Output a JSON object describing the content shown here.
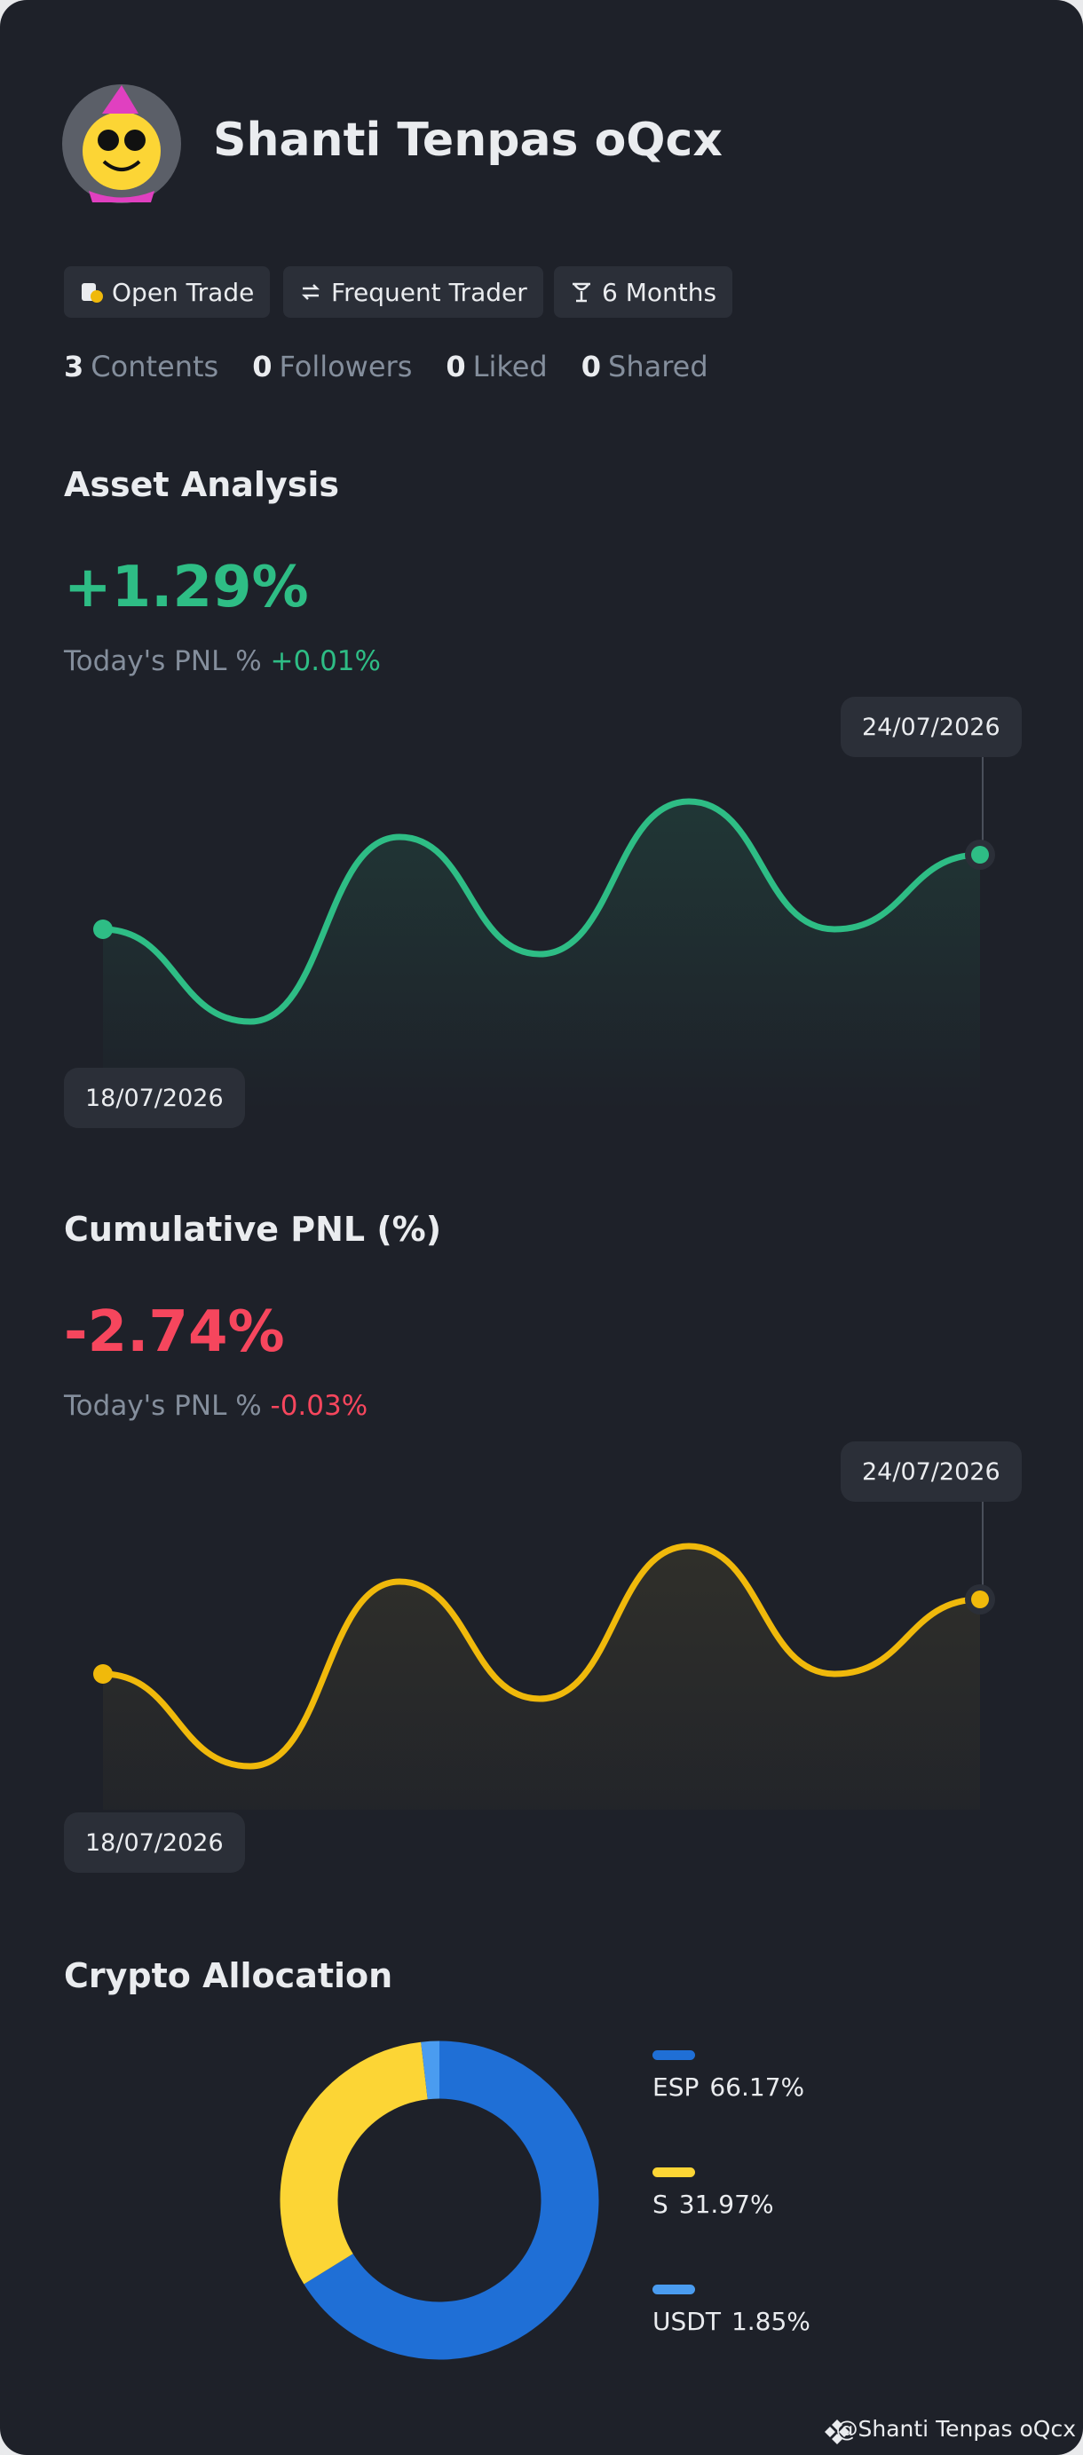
{
  "profile": {
    "name": "Shanti Tenpas oQcx",
    "tags": [
      "Open Trade",
      "Frequent Trader",
      "6 Months"
    ],
    "stats": [
      {
        "count": 3,
        "label": "Contents"
      },
      {
        "count": 0,
        "label": "Followers"
      },
      {
        "count": 0,
        "label": "Liked"
      },
      {
        "count": 0,
        "label": "Shared"
      }
    ]
  },
  "asset_analysis": {
    "title": "Asset Analysis",
    "value": "+1.29%",
    "today_label": "Today's PNL %",
    "today_value": "+0.01%",
    "start_date": "18/07/2026",
    "end_date": "24/07/2026"
  },
  "cumulative_pnl": {
    "title": "Cumulative PNL (%)",
    "value": "-2.74%",
    "today_label": "Today's PNL %",
    "today_value": "-0.03%",
    "start_date": "18/07/2026",
    "end_date": "24/07/2026"
  },
  "crypto_allocation": {
    "title": "Crypto Allocation",
    "items": [
      {
        "name": "ESP",
        "value": 66.17,
        "label": "66.17%",
        "color": "#1f6fd6"
      },
      {
        "name": "S",
        "value": 31.97,
        "label": "31.97%",
        "color": "#fcd535"
      },
      {
        "name": "USDT",
        "value": 1.85,
        "label": "1.85%",
        "color": "#4a9cf0"
      }
    ]
  },
  "watermark": "@Shanti Tenpas oQcx"
}
